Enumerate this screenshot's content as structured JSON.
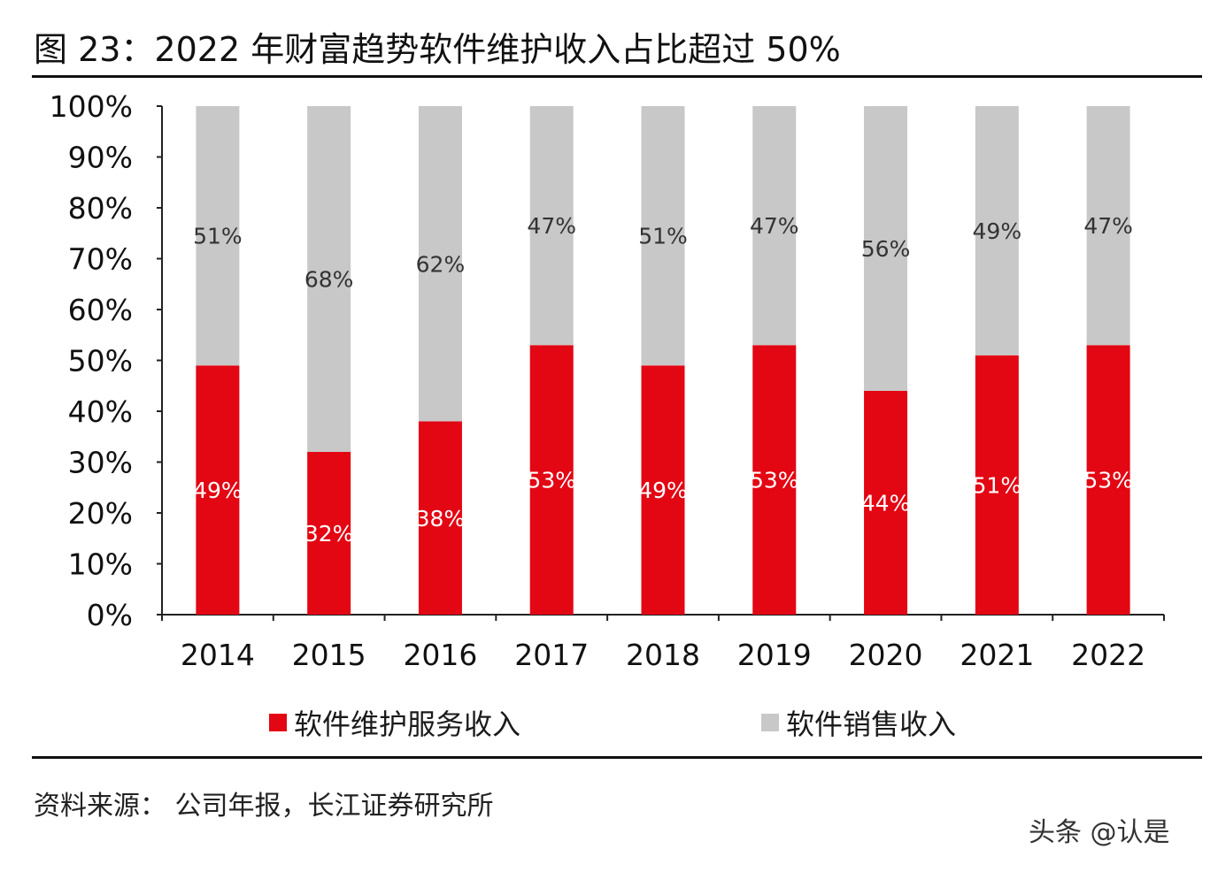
{
  "header": {
    "title": "图  23：2022 年财富趋势软件维护收入占比超过 50%"
  },
  "footer": {
    "source": "资料来源：  公司年报，长江证券研究所",
    "watermark": "头条 @认是"
  },
  "colors": {
    "maintenance": "#e30613",
    "sales": "#c8c8c8"
  },
  "chart_data": {
    "type": "bar",
    "stacked": true,
    "title": "2022 年财富趋势软件维护收入占比超过 50%",
    "categories": [
      "2014",
      "2015",
      "2016",
      "2017",
      "2018",
      "2019",
      "2020",
      "2021",
      "2022"
    ],
    "series": [
      {
        "name": "软件维护服务收入",
        "values": [
          49,
          32,
          38,
          53,
          49,
          53,
          44,
          51,
          53
        ],
        "labels": [
          "49%",
          "32%",
          "38%",
          "53%",
          "49%",
          "53%",
          "44%",
          "51%",
          "53%"
        ]
      },
      {
        "name": "软件销售收入",
        "values": [
          51,
          68,
          62,
          47,
          51,
          47,
          56,
          49,
          47
        ],
        "labels": [
          "51%",
          "68%",
          "62%",
          "47%",
          "51%",
          "47%",
          "56%",
          "49%",
          "47%"
        ]
      }
    ],
    "ylim": [
      0,
      100
    ],
    "yticks": [
      "0%",
      "10%",
      "20%",
      "30%",
      "40%",
      "50%",
      "60%",
      "70%",
      "80%",
      "90%",
      "100%"
    ],
    "legend_position": "bottom",
    "grid": false
  }
}
